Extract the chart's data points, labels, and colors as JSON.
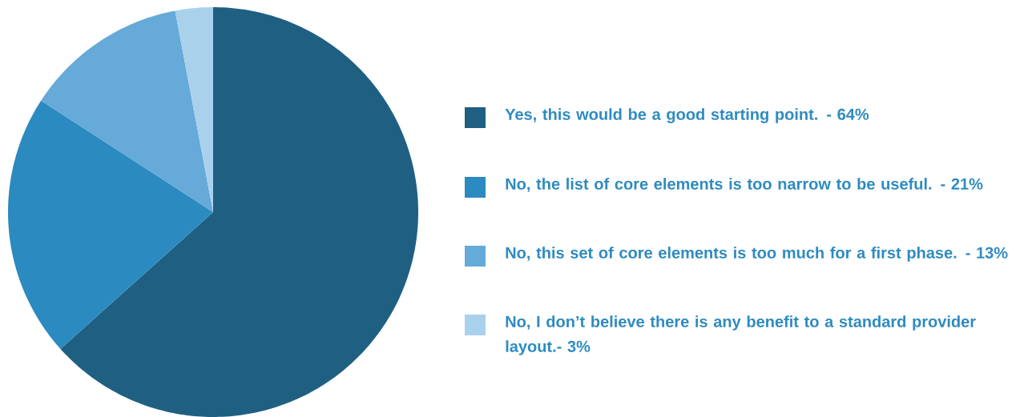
{
  "chart_data": {
    "type": "pie",
    "categories": [
      "Yes, this would be a good starting point. - 64%",
      "No, the list of core elements is too narrow to be useful. - 21%",
      "No, this set of core elements is too much for a first phase. - 13%",
      "No, I don’t believe there is any benefit to a standard provider layout.- 3%"
    ],
    "values": [
      64,
      21,
      13,
      3
    ],
    "colors": [
      "#1f6082",
      "#2b8abf",
      "#65aad9",
      "#a9d1ec"
    ],
    "legend": "right"
  }
}
